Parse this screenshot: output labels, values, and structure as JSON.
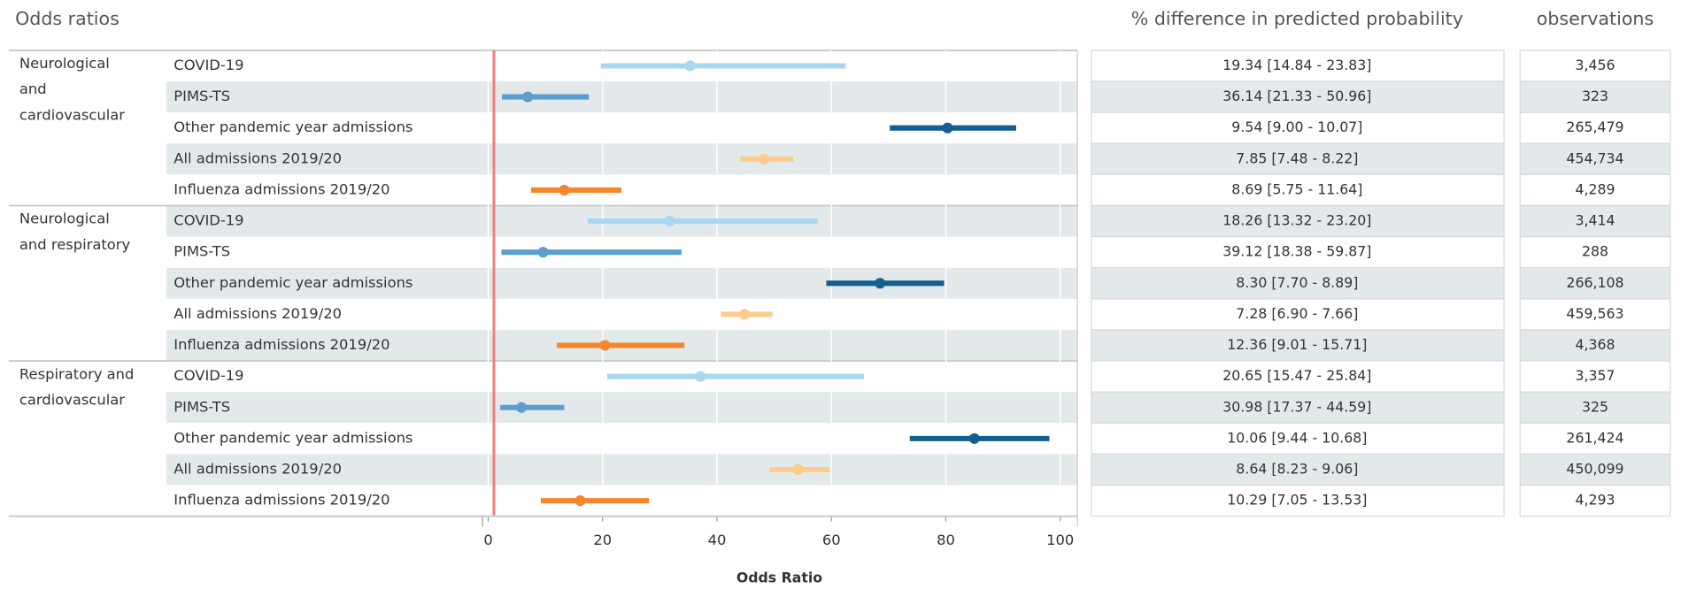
{
  "chart_data": {
    "type": "forest",
    "title": "Odds ratios",
    "x_label": "Odds Ratio",
    "xlim": [
      -1,
      103
    ],
    "xticks": [
      0,
      20,
      40,
      60,
      80,
      100
    ],
    "grid": true,
    "reference_line": 1,
    "reference_color": "#f08080",
    "table_headers": [
      "% difference in predicted probability",
      "observations"
    ],
    "series": [
      {
        "name": "COVID-19",
        "color": "#a9d7f0"
      },
      {
        "name": "PIMS-TS",
        "color": "#5b9fcf"
      },
      {
        "name": "Other pandemic year admissions",
        "color": "#135f8f"
      },
      {
        "name": "All admissions 2019/20",
        "color": "#fdcb8a"
      },
      {
        "name": "Influenza admissions 2019/20",
        "color": "#f7862a"
      }
    ],
    "groups": [
      {
        "label_lines": [
          "Neurological",
          "and",
          "cardiovascular"
        ],
        "estimate": [
          35.3,
          6.9,
          80.3,
          48.2,
          13.3
        ],
        "lower": [
          19.7,
          2.4,
          70.2,
          44.1,
          7.5
        ],
        "upper": [
          62.5,
          17.6,
          92.3,
          53.3,
          23.3
        ],
        "pct_difference": [
          "19.34 [14.84 - 23.83]",
          "36.14 [21.33 - 50.96]",
          "9.54 [9.00 - 10.07]",
          "7.85 [7.48 - 8.22]",
          "8.69 [5.75 - 11.64]"
        ],
        "observations": [
          "3,456",
          "323",
          "265,479",
          "454,734",
          "4,289"
        ]
      },
      {
        "label_lines": [
          "Neurological",
          "and respiratory"
        ],
        "estimate": [
          31.7,
          9.6,
          68.5,
          44.8,
          20.4
        ],
        "lower": [
          17.4,
          2.3,
          59.1,
          40.7,
          12.0
        ],
        "upper": [
          57.6,
          33.8,
          79.7,
          49.7,
          34.3
        ],
        "pct_difference": [
          "18.26 [13.32 - 23.20]",
          "39.12 [18.38 - 59.87]",
          "8.30 [7.70 - 8.89]",
          "7.28 [6.90 - 7.66]",
          "12.36 [9.01 - 15.71]"
        ],
        "observations": [
          "3,414",
          "288",
          "266,108",
          "459,563",
          "4,368"
        ]
      },
      {
        "label_lines": [
          "Respiratory and",
          "cardiovascular"
        ],
        "estimate": [
          37.1,
          5.8,
          85.0,
          54.2,
          16.1
        ],
        "lower": [
          20.8,
          2.1,
          73.7,
          49.2,
          9.2
        ],
        "upper": [
          65.7,
          13.3,
          98.1,
          59.7,
          28.1
        ],
        "pct_difference": [
          "20.65 [15.47 - 25.84]",
          "30.98 [17.37 - 44.59]",
          "10.06 [9.44 - 10.68]",
          "8.64 [8.23 - 9.06]",
          "10.29 [7.05 - 13.53]"
        ],
        "observations": [
          "3,357",
          "325",
          "261,424",
          "450,099",
          "4,293"
        ]
      }
    ]
  }
}
